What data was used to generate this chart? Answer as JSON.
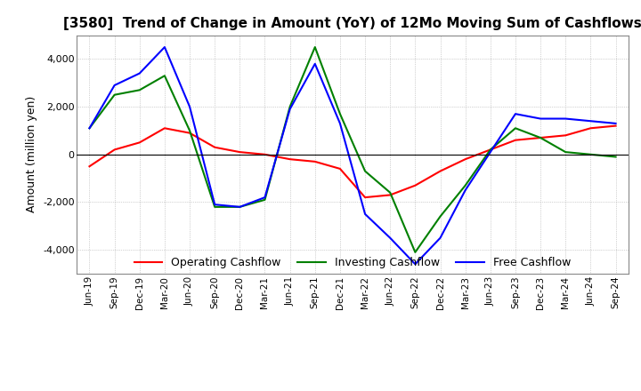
{
  "title": "[3580]  Trend of Change in Amount (YoY) of 12Mo Moving Sum of Cashflows",
  "ylabel": "Amount (million yen)",
  "x_labels": [
    "Jun-19",
    "Sep-19",
    "Dec-19",
    "Mar-20",
    "Jun-20",
    "Sep-20",
    "Dec-20",
    "Mar-21",
    "Jun-21",
    "Sep-21",
    "Dec-21",
    "Mar-22",
    "Jun-22",
    "Sep-22",
    "Dec-22",
    "Mar-23",
    "Jun-23",
    "Sep-23",
    "Dec-23",
    "Mar-24",
    "Jun-24",
    "Sep-24"
  ],
  "operating": [
    -500,
    200,
    500,
    1100,
    900,
    300,
    100,
    0,
    -200,
    -300,
    -600,
    -1800,
    -1700,
    -1300,
    -700,
    -200,
    200,
    600,
    700,
    800,
    1100,
    1200
  ],
  "investing": [
    1100,
    2500,
    2700,
    3300,
    1000,
    -2200,
    -2200,
    -1900,
    2000,
    4500,
    1700,
    -700,
    -1600,
    -4100,
    -2600,
    -1300,
    200,
    1100,
    700,
    100,
    0,
    -100
  ],
  "free": [
    1100,
    2900,
    3400,
    4500,
    2000,
    -2100,
    -2200,
    -1800,
    1900,
    3800,
    1300,
    -2500,
    -3500,
    -4600,
    -3500,
    -1500,
    100,
    1700,
    1500,
    1500,
    1400,
    1300
  ],
  "ylim": [
    -5000,
    5000
  ],
  "yticks": [
    -4000,
    -2000,
    0,
    2000,
    4000
  ],
  "colors": {
    "operating": "#ff0000",
    "investing": "#008000",
    "free": "#0000ff"
  },
  "legend_labels": [
    "Operating Cashflow",
    "Investing Cashflow",
    "Free Cashflow"
  ],
  "background_color": "#ffffff",
  "grid_color": "#aaaaaa"
}
